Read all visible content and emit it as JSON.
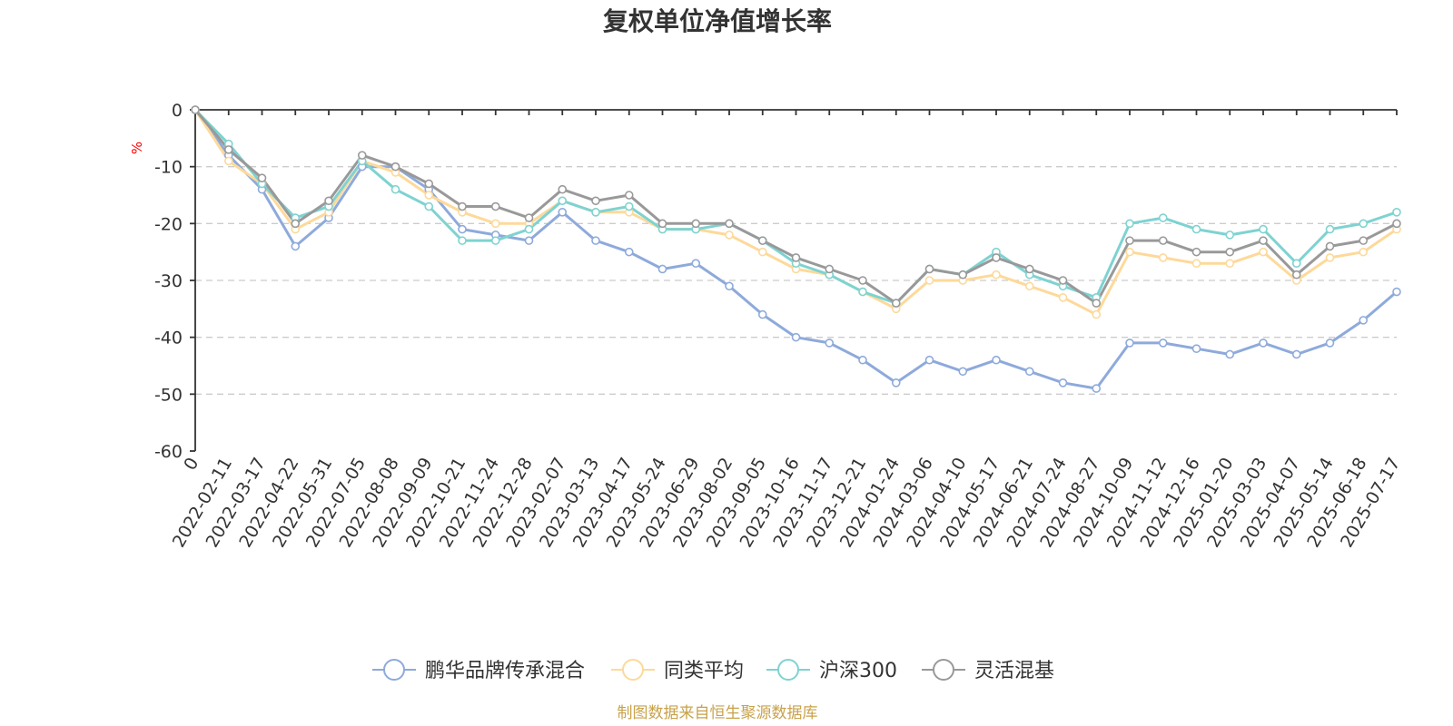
{
  "chart_data": {
    "type": "line",
    "title": "复权单位净值增长率",
    "ylabel": "%",
    "ylim": [
      -60,
      0
    ],
    "yticks": [
      "0",
      "-10",
      "-20",
      "-30",
      "-40",
      "-50",
      "-60"
    ],
    "grid": true,
    "legend_position": "bottom",
    "x": [
      "0",
      "2022-02-11",
      "2022-03-17",
      "2022-04-22",
      "2022-05-31",
      "2022-07-05",
      "2022-08-08",
      "2022-09-09",
      "2022-10-21",
      "2022-11-24",
      "2022-12-28",
      "2023-02-07",
      "2023-03-13",
      "2023-04-17",
      "2023-05-24",
      "2023-06-29",
      "2023-08-02",
      "2023-09-05",
      "2023-10-16",
      "2023-11-17",
      "2023-12-21",
      "2024-01-24",
      "2024-03-06",
      "2024-04-10",
      "2024-05-17",
      "2024-06-21",
      "2024-07-24",
      "2024-08-27",
      "2024-10-09",
      "2024-11-12",
      "2024-12-16",
      "2025-01-20",
      "2025-03-03",
      "2025-04-07",
      "2025-05-14",
      "2025-06-18",
      "2025-07-17"
    ],
    "series": [
      {
        "name": "鹏华品牌传承混合",
        "color": "#8eaadb",
        "values": [
          0,
          -8,
          -14,
          -24,
          -19,
          -10,
          -10,
          -14,
          -21,
          -22,
          -23,
          -18,
          -23,
          -25,
          -28,
          -27,
          -31,
          -36,
          -40,
          -41,
          -44,
          -48,
          -44,
          -46,
          -44,
          -46,
          -48,
          -49,
          -41,
          -41,
          -42,
          -43,
          -41,
          -43,
          -41,
          -37,
          -32
        ]
      },
      {
        "name": "同类平均",
        "color": "#fdd99a",
        "values": [
          0,
          -9,
          -13,
          -21,
          -18,
          -9,
          -11,
          -15,
          -18,
          -20,
          -20,
          -16,
          -18,
          -18,
          -21,
          -21,
          -22,
          -25,
          -28,
          -29,
          -32,
          -35,
          -30,
          -30,
          -29,
          -31,
          -33,
          -36,
          -25,
          -26,
          -27,
          -27,
          -25,
          -30,
          -26,
          -25,
          -21
        ]
      },
      {
        "name": "沪深300",
        "color": "#7ed3d1",
        "values": [
          0,
          -6,
          -13,
          -19,
          -17,
          -9,
          -14,
          -17,
          -23,
          -23,
          -21,
          -16,
          -18,
          -17,
          -21,
          -21,
          -20,
          -23,
          -27,
          -29,
          -32,
          -34,
          -28,
          -29,
          -25,
          -29,
          -31,
          -33,
          -20,
          -19,
          -21,
          -22,
          -21,
          -27,
          -21,
          -20,
          -18
        ]
      },
      {
        "name": "灵活混基",
        "color": "#999999",
        "values": [
          0,
          -7,
          -12,
          -20,
          -16,
          -8,
          -10,
          -13,
          -17,
          -17,
          -19,
          -14,
          -16,
          -15,
          -20,
          -20,
          -20,
          -23,
          -26,
          -28,
          -30,
          -34,
          -28,
          -29,
          -26,
          -28,
          -30,
          -34,
          -23,
          -23,
          -25,
          -25,
          -23,
          -29,
          -24,
          -23,
          -20
        ]
      }
    ]
  },
  "source_note": "制图数据来自恒生聚源数据库"
}
